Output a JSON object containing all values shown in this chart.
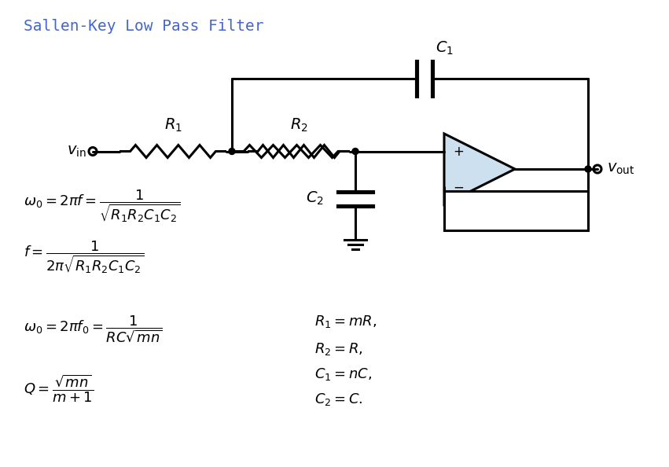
{
  "title": "Sallen-Key Low Pass Filter",
  "title_color": "#4466cc",
  "title_fontsize": 14,
  "bg_color": "#ffffff",
  "circuit_color": "#000000",
  "opamp_fill": "#cce0f0",
  "formula1": "$\\omega_0 = 2\\pi f = \\dfrac{1}{\\sqrt{R_1 R_2 C_1 C_2}}$",
  "formula2": "$f = \\dfrac{1}{2\\pi\\sqrt{R_1 R_2 C_1 C_2}}$",
  "formula3": "$\\omega_0 = 2\\pi f_0 = \\dfrac{1}{RC\\sqrt{mn}}$",
  "formula4": "$Q = \\dfrac{\\sqrt{mn}}{m+1}$",
  "param1": "$R_1 = mR,$",
  "param2": "$R_2 = R,$",
  "param3": "$C_1 = nC,$",
  "param4": "$C_2 = C.$"
}
